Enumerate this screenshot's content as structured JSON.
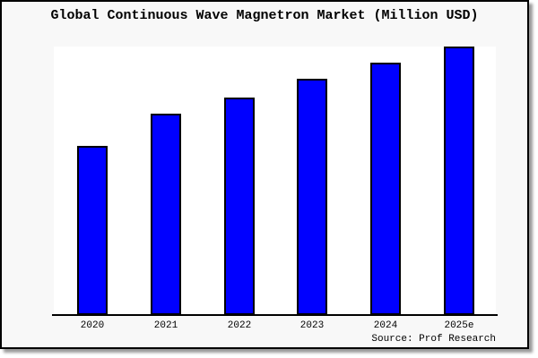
{
  "chart_data": {
    "type": "bar",
    "title": "Global Continuous Wave Magnetron Market (Million USD)",
    "categories": [
      "2020",
      "2021",
      "2022",
      "2023",
      "2024",
      "2025e"
    ],
    "values": [
      63,
      75,
      81,
      88,
      94,
      100
    ],
    "xlabel": "",
    "ylabel": "",
    "ylim": [
      0,
      100
    ],
    "y_axis_visible": false,
    "grid": false,
    "legend": "none",
    "values_scale": "relative, normalized to 2025e = 100 (no y-axis labels shown)",
    "bar_color": "#0000ff",
    "bar_border_color": "#000000"
  },
  "source_caption": "Source: Prof Research",
  "colors": {
    "frame_background": "#f8f8f8",
    "plot_background": "#ffffff",
    "bar": "#0000ff",
    "axis": "#000000",
    "text": "#000000",
    "shadow": "#999999"
  }
}
